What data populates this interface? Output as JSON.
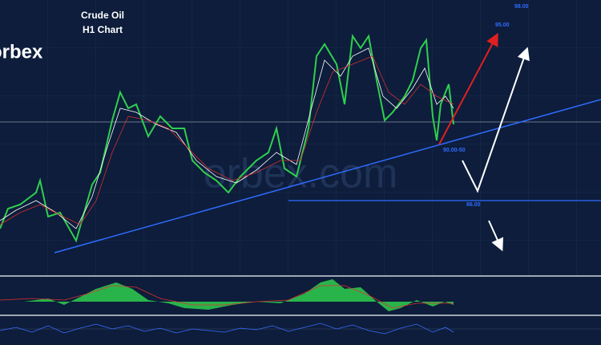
{
  "title": "Crude Oil",
  "subtitle": "H1 Chart",
  "logo": "orbex",
  "watermark": "orbex.com",
  "levels": [
    "98.00",
    "95.00",
    "90.00-50",
    "86.00"
  ]
}
